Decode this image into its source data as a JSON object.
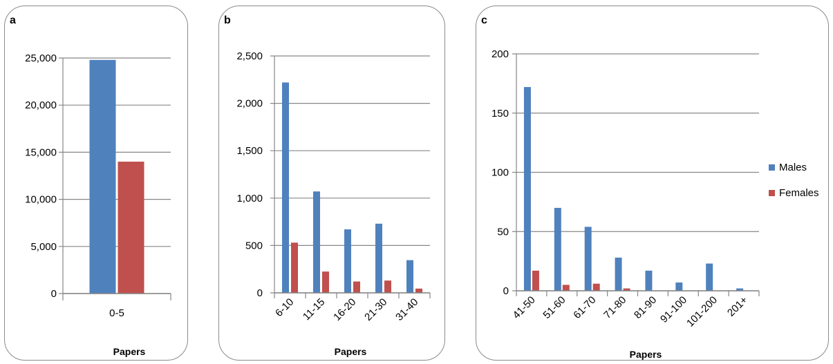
{
  "chart_data": [
    {
      "type": "bar",
      "panel": "a",
      "categories": [
        "0-5"
      ],
      "series": [
        {
          "name": "Males",
          "values": [
            24800
          ]
        },
        {
          "name": "Females",
          "values": [
            14000
          ]
        }
      ],
      "xlabel": "Papers",
      "ylim": [
        0,
        25000
      ],
      "yticks": [
        "0",
        "5,000",
        "10,000",
        "15,000",
        "20,000",
        "25,000"
      ],
      "ytick_values": [
        0,
        5000,
        10000,
        15000,
        20000,
        25000
      ],
      "grid": true
    },
    {
      "type": "bar",
      "panel": "b",
      "categories": [
        "6-10",
        "11-15",
        "16-20",
        "21-30",
        "31-40"
      ],
      "series": [
        {
          "name": "Males",
          "values": [
            2220,
            1070,
            670,
            730,
            345
          ]
        },
        {
          "name": "Females",
          "values": [
            530,
            225,
            120,
            130,
            45
          ]
        }
      ],
      "xlabel": "Papers",
      "ylim": [
        0,
        2500
      ],
      "yticks": [
        "0",
        "500",
        "1,000",
        "1,500",
        "2,000",
        "2,500"
      ],
      "ytick_values": [
        0,
        500,
        1000,
        1500,
        2000,
        2500
      ],
      "grid": true
    },
    {
      "type": "bar",
      "panel": "c",
      "categories": [
        "41-50",
        "51-60",
        "61-70",
        "71-80",
        "81-90",
        "91-100",
        "101-200",
        "201+"
      ],
      "series": [
        {
          "name": "Males",
          "values": [
            172,
            70,
            54,
            28,
            17,
            7,
            23,
            2
          ]
        },
        {
          "name": "Females",
          "values": [
            17,
            5,
            6,
            2,
            0,
            0,
            0,
            0
          ]
        }
      ],
      "xlabel": "Papers",
      "ylim": [
        0,
        200
      ],
      "yticks": [
        "0",
        "50",
        "100",
        "150",
        "200"
      ],
      "ytick_values": [
        0,
        50,
        100,
        150,
        200
      ],
      "grid": true,
      "legend_position": "right"
    }
  ],
  "panels": {
    "a": "a",
    "b": "b",
    "c": "c"
  },
  "legend": {
    "males": "Males",
    "females": "Females"
  },
  "colors": {
    "males": "#4f81bd",
    "females": "#c0504d",
    "grid": "#868686",
    "axis": "#868686"
  }
}
